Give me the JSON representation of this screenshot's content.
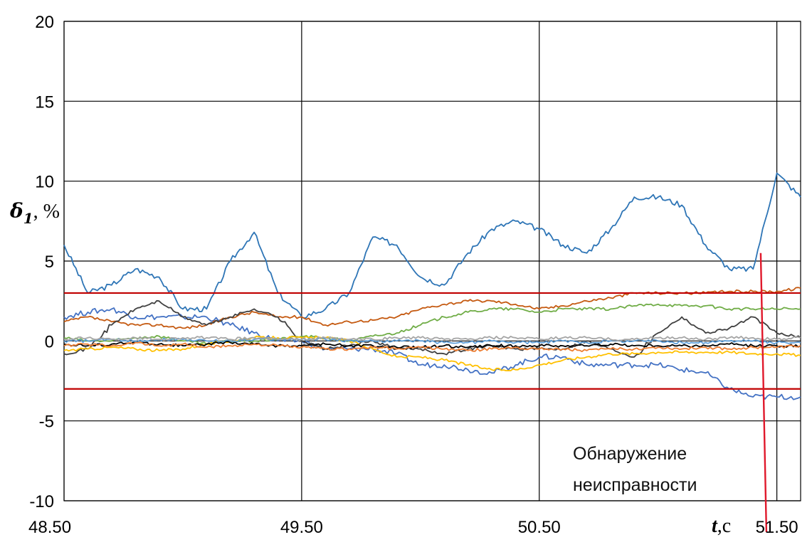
{
  "chart_data": {
    "type": "line",
    "ylabel_main": "δ",
    "ylabel_sub": "1",
    "ylabel_unit": ", %",
    "xlabel_var": "t",
    "xlabel_unit": ",с",
    "xlim": [
      48.5,
      51.6
    ],
    "ylim": [
      -10,
      20
    ],
    "x_ticks": [
      "48.50",
      "49.50",
      "50.50",
      "51.50"
    ],
    "x_tick_values": [
      48.5,
      49.5,
      50.5,
      51.5
    ],
    "y_ticks": [
      "20",
      "15",
      "10",
      "5",
      "0",
      "-5",
      "-10"
    ],
    "y_tick_values": [
      20,
      15,
      10,
      5,
      0,
      -5,
      -10
    ],
    "grid": true,
    "threshold_lines": [
      3,
      -3
    ],
    "detection_x": 51.45,
    "detection_y_top": 5.5,
    "annotation": [
      "Обнаружение",
      "неисправности"
    ],
    "colors": {
      "threshold": "#c00000",
      "detection": "#e0182b",
      "grid": "#000000"
    },
    "series": [
      {
        "color": "#2e75b6",
        "x": [
          48.5,
          48.6,
          48.7,
          48.8,
          48.9,
          49.0,
          49.1,
          49.2,
          49.3,
          49.4,
          49.5,
          49.6,
          49.7,
          49.8,
          49.9,
          50.0,
          50.1,
          50.2,
          50.3,
          50.4,
          50.5,
          50.6,
          50.7,
          50.8,
          50.9,
          51.0,
          51.1,
          51.2,
          51.3,
          51.4,
          51.5,
          51.6
        ],
        "y": [
          6,
          3,
          3.5,
          4.5,
          4,
          2,
          2,
          5,
          6.8,
          3,
          1.5,
          2,
          3,
          6.5,
          6,
          4,
          3.5,
          5.5,
          7,
          7.5,
          7,
          6,
          5.5,
          7,
          9,
          9,
          8.5,
          6,
          4.5,
          4.5,
          10.5,
          9
        ]
      },
      {
        "color": "#4472c4",
        "x": [
          48.5,
          48.6,
          48.7,
          48.8,
          48.9,
          49.0,
          49.1,
          49.2,
          49.3,
          49.4,
          49.5,
          49.6,
          49.7,
          49.8,
          49.9,
          50.0,
          50.1,
          50.2,
          50.3,
          50.4,
          50.5,
          50.6,
          50.7,
          50.8,
          50.9,
          51.0,
          51.1,
          51.2,
          51.3,
          51.4,
          51.5,
          51.6
        ],
        "y": [
          1.5,
          1.8,
          2,
          1.5,
          1.5,
          1.5,
          1.5,
          1,
          0.5,
          0,
          0,
          -0.5,
          -0.5,
          -0.5,
          -0.8,
          -1.5,
          -1.5,
          -1.8,
          -2,
          -1.5,
          -1,
          -1,
          -1.5,
          -1.5,
          -1.5,
          -1.5,
          -1.8,
          -2,
          -3,
          -3.5,
          -3.5,
          -3.5
        ]
      },
      {
        "color": "#c55a11",
        "x": [
          48.5,
          48.6,
          48.7,
          48.8,
          48.9,
          49.0,
          49.1,
          49.2,
          49.3,
          49.4,
          49.5,
          49.6,
          49.7,
          49.8,
          49.9,
          50.0,
          50.1,
          50.2,
          50.3,
          50.4,
          50.5,
          50.6,
          50.7,
          50.8,
          50.9,
          51.0,
          51.1,
          51.2,
          51.3,
          51.4,
          51.5,
          51.6
        ],
        "y": [
          1.2,
          1.5,
          1.2,
          1,
          1,
          0.8,
          1,
          1.5,
          1.8,
          1.5,
          1.5,
          1,
          1.2,
          1.3,
          1.5,
          2,
          2.3,
          2.5,
          2.5,
          2.3,
          2,
          2.2,
          2.5,
          2.7,
          3,
          3,
          3,
          3,
          3.1,
          3.1,
          3.1,
          3.3
        ]
      },
      {
        "color": "#70ad47",
        "x": [
          48.5,
          48.6,
          48.7,
          48.8,
          48.9,
          49.0,
          49.1,
          49.2,
          49.3,
          49.4,
          49.5,
          49.6,
          49.7,
          49.8,
          49.9,
          50.0,
          50.1,
          50.2,
          50.3,
          50.4,
          50.5,
          50.6,
          50.7,
          50.8,
          50.9,
          51.0,
          51.1,
          51.2,
          51.3,
          51.4,
          51.5,
          51.6
        ],
        "y": [
          0.2,
          0,
          0,
          0.2,
          0.3,
          0,
          -0.2,
          0,
          0,
          0.1,
          0.3,
          0.2,
          0,
          0.3,
          0.5,
          1,
          1.5,
          1.8,
          2,
          2,
          1.8,
          2,
          2,
          2,
          2.2,
          2.3,
          2.2,
          2.2,
          2,
          2,
          2,
          2
        ]
      },
      {
        "color": "#404040",
        "x": [
          48.5,
          48.6,
          48.7,
          48.8,
          48.9,
          49.0,
          49.1,
          49.2,
          49.3,
          49.4,
          49.5,
          49.6,
          49.7,
          49.8,
          49.9,
          50.0,
          50.1,
          50.2,
          50.3,
          50.4,
          50.5,
          50.6,
          50.7,
          50.8,
          50.9,
          51.0,
          51.1,
          51.2,
          51.3,
          51.4,
          51.5,
          51.6
        ],
        "y": [
          -0.8,
          -0.5,
          1,
          2,
          2.5,
          1.5,
          1,
          1.5,
          2,
          1.5,
          0,
          -0.5,
          -0.3,
          0,
          -0.5,
          -0.5,
          -0.8,
          -0.5,
          -0.3,
          -0.5,
          -0.5,
          -0.5,
          0,
          -0.5,
          -1,
          0.5,
          1.5,
          0.5,
          0.8,
          1.5,
          0.5,
          0.2
        ]
      },
      {
        "color": "#ffc000",
        "x": [
          48.5,
          48.6,
          48.7,
          48.8,
          48.9,
          49.0,
          49.1,
          49.2,
          49.3,
          49.4,
          49.5,
          49.6,
          49.7,
          49.8,
          49.9,
          50.0,
          50.1,
          50.2,
          50.3,
          50.4,
          50.5,
          50.6,
          50.7,
          50.8,
          50.9,
          51.0,
          51.1,
          51.2,
          51.3,
          51.4,
          51.5,
          51.6
        ],
        "y": [
          -0.6,
          -0.5,
          -0.4,
          -0.5,
          -0.6,
          -0.5,
          -0.2,
          0,
          0.2,
          0.2,
          0.2,
          0.2,
          0,
          -0.5,
          -1,
          -1,
          -1.2,
          -1.5,
          -1.8,
          -1.8,
          -1.5,
          -1.2,
          -1,
          -0.8,
          -0.8,
          -0.7,
          -0.7,
          -0.7,
          -0.7,
          -0.8,
          -0.8,
          -0.9
        ]
      },
      {
        "color": "#000000",
        "x": [
          48.5,
          48.6,
          48.7,
          48.8,
          48.9,
          49.0,
          49.1,
          49.2,
          49.3,
          49.4,
          49.5,
          49.6,
          49.7,
          49.8,
          49.9,
          50.0,
          50.1,
          50.2,
          50.3,
          50.4,
          50.5,
          50.6,
          50.7,
          50.8,
          50.9,
          51.0,
          51.1,
          51.2,
          51.3,
          51.4,
          51.5,
          51.6
        ],
        "y": [
          -0.2,
          -0.3,
          -0.2,
          -0.1,
          -0.2,
          -0.3,
          -0.2,
          -0.1,
          -0.2,
          -0.3,
          -0.3,
          -0.2,
          -0.3,
          -0.3,
          -0.4,
          -0.4,
          -0.3,
          -0.4,
          -0.3,
          -0.3,
          -0.3,
          -0.3,
          -0.3,
          -0.2,
          -0.3,
          -0.3,
          -0.3,
          -0.3,
          -0.2,
          -0.3,
          -0.3,
          -0.3
        ]
      },
      {
        "color": "#5b9bd5",
        "x": [
          48.5,
          48.6,
          48.7,
          48.8,
          48.9,
          49.0,
          49.1,
          49.2,
          49.3,
          49.4,
          49.5,
          49.6,
          49.7,
          49.8,
          49.9,
          50.0,
          50.1,
          50.2,
          50.3,
          50.4,
          50.5,
          50.6,
          50.7,
          50.8,
          50.9,
          51.0,
          51.1,
          51.2,
          51.3,
          51.4,
          51.5,
          51.6
        ],
        "y": [
          0,
          0,
          0.1,
          0,
          0.1,
          0.1,
          0,
          0,
          0.1,
          0.1,
          0.1,
          0.1,
          0,
          0,
          0,
          0,
          -0.1,
          -0.1,
          0,
          -0.1,
          -0.1,
          0,
          -0.1,
          0,
          0,
          0,
          -0.1,
          -0.1,
          0,
          0,
          -0.1,
          -0.1
        ]
      },
      {
        "color": "#ed7d31",
        "x": [
          48.5,
          48.6,
          48.7,
          48.8,
          48.9,
          49.0,
          49.1,
          49.2,
          49.3,
          49.4,
          49.5,
          49.6,
          49.7,
          49.8,
          49.9,
          50.0,
          50.1,
          50.2,
          50.3,
          50.4,
          50.5,
          50.6,
          50.7,
          50.8,
          50.9,
          51.0,
          51.1,
          51.2,
          51.3,
          51.4,
          51.5,
          51.6
        ],
        "y": [
          -0.3,
          -0.2,
          -0.3,
          -0.1,
          -0.3,
          -0.2,
          -0.4,
          -0.3,
          -0.2,
          -0.3,
          -0.4,
          -0.5,
          -0.5,
          -0.4,
          -0.5,
          -0.4,
          -0.5,
          -0.6,
          -0.5,
          -0.4,
          -0.5,
          -0.5,
          -0.6,
          -0.5,
          -0.5,
          -0.4,
          -0.5,
          -0.4,
          -0.5,
          -0.4,
          -0.4,
          -0.3
        ]
      },
      {
        "color": "#a5a5a5",
        "x": [
          48.5,
          48.6,
          48.7,
          48.8,
          48.9,
          49.0,
          49.1,
          49.2,
          49.3,
          49.4,
          49.5,
          49.6,
          49.7,
          49.8,
          49.9,
          50.0,
          50.1,
          50.2,
          50.3,
          50.4,
          50.5,
          50.6,
          50.7,
          50.8,
          50.9,
          51.0,
          51.1,
          51.2,
          51.3,
          51.4,
          51.5,
          51.6
        ],
        "y": [
          0.1,
          0.2,
          0.1,
          0.2,
          0.1,
          0.2,
          0.2,
          0.1,
          0.2,
          0.1,
          0.1,
          0.2,
          0.1,
          0.1,
          0.2,
          0.2,
          0.1,
          0.1,
          0.2,
          0.2,
          0.1,
          0.2,
          0.2,
          0.1,
          0.1,
          0.2,
          0.2,
          0.1,
          0.2,
          0.2,
          0.1,
          0.2
        ]
      }
    ]
  }
}
